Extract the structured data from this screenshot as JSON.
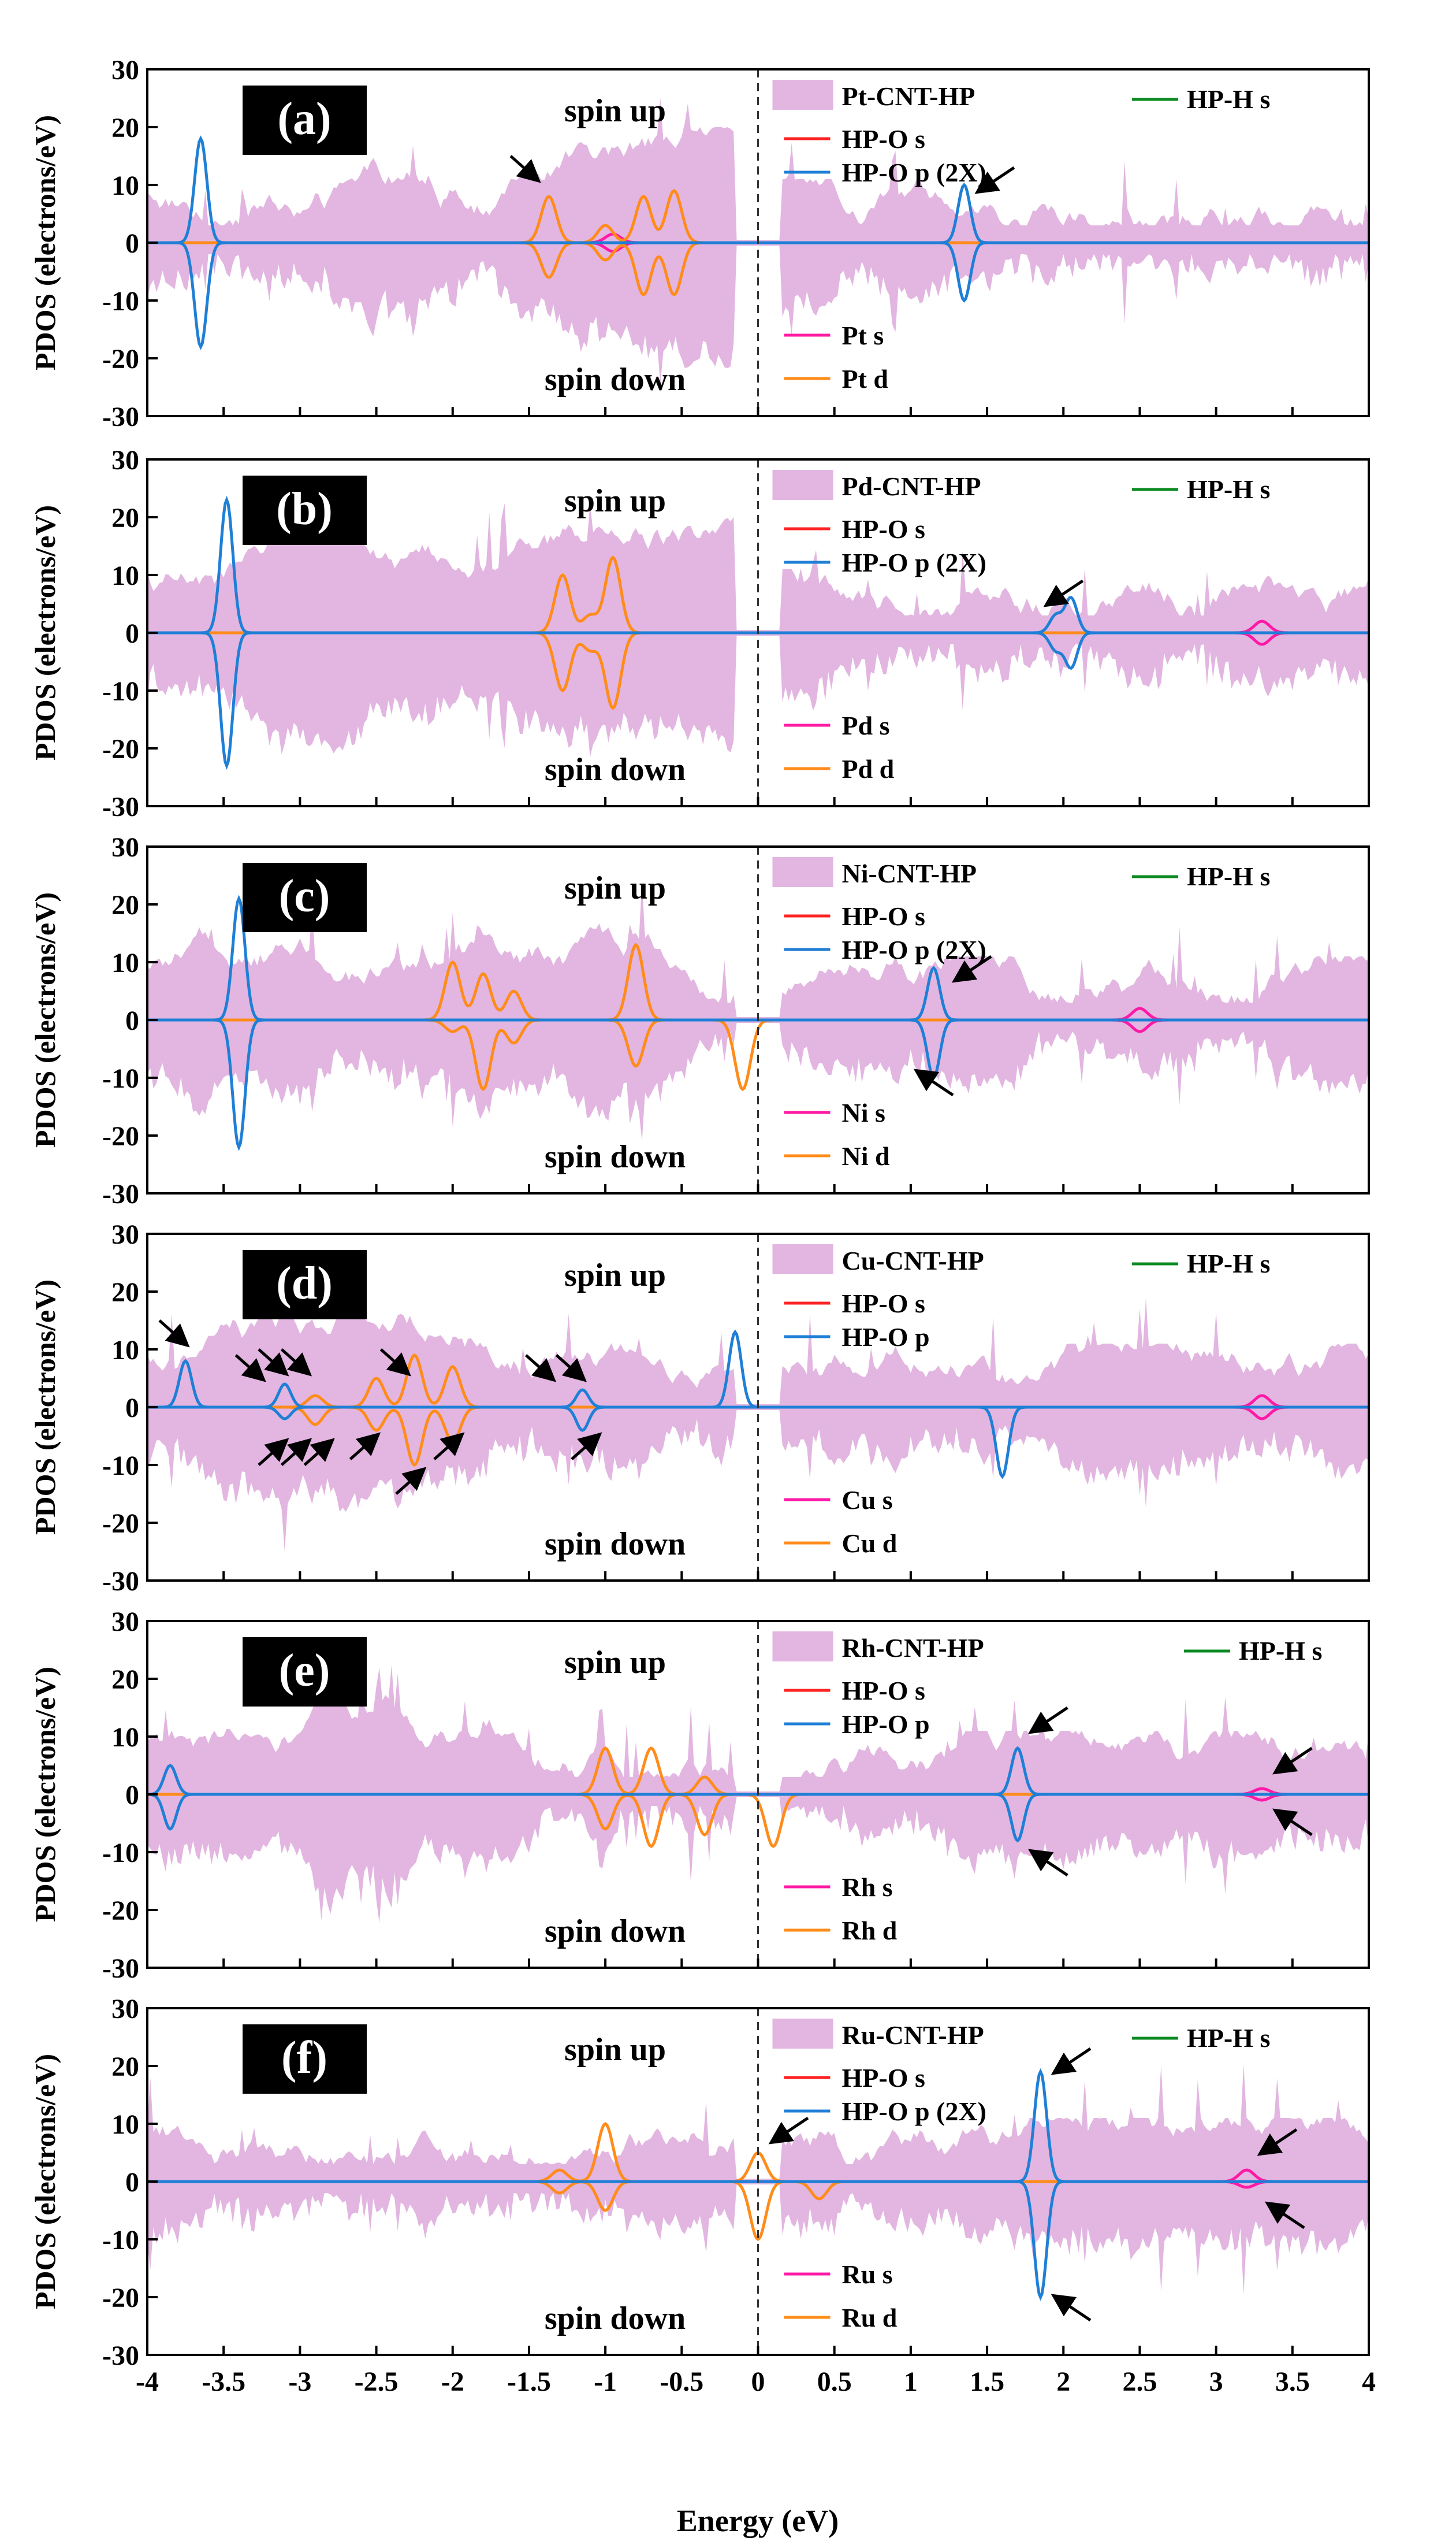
{
  "figure": {
    "xlabel": "Energy (eV)",
    "ylabel": "PDOS (electrons/eV)",
    "x_ticks": [
      "-4",
      "-3.5",
      "-3",
      "-2.5",
      "-2",
      "-1.5",
      "-1",
      "-0.5",
      "0",
      "0.5",
      "1",
      "1.5",
      "2",
      "2.5",
      "3",
      "3.5",
      "4"
    ],
    "y_ticks": [
      "30",
      "20",
      "10",
      "0",
      "-10",
      "-20",
      "-30"
    ]
  },
  "colors": {
    "total": "#e2b6e1",
    "o_s": "#ff2222",
    "o_p": "#1f7fd6",
    "h_s": "#0b8a22",
    "m_s": "#ff1aa6",
    "m_d": "#ff8c1a",
    "arrow": "#000000",
    "fermi": "#333333"
  },
  "chart_data": [
    {
      "type": "area",
      "panel_label": "(a)",
      "spin_up_label": "spin up",
      "spin_down_label": "spin down",
      "xlim": [
        -4,
        4
      ],
      "ylim": [
        -30,
        30
      ],
      "legend": {
        "total": "Pt-CNT-HP",
        "h_s": "HP-H s",
        "o_s": "HP-O s",
        "o_p": "HP-O p (2X)",
        "m_s": "Pt  s",
        "m_d": "Pt  d"
      },
      "peaks": {
        "o_p": [
          {
            "x": -3.65,
            "up": 18,
            "down": -18
          },
          {
            "x": 1.35,
            "up": 10,
            "down": -10
          }
        ],
        "m_d": [
          {
            "x": -1.37,
            "up": 8,
            "down": -6
          },
          {
            "x": -1.0,
            "up": 3,
            "down": -3
          },
          {
            "x": -0.75,
            "up": 8,
            "down": -9
          },
          {
            "x": -0.55,
            "up": 9,
            "down": -9
          }
        ],
        "m_s": [
          {
            "x": -0.95,
            "up": 1.5,
            "down": -1.5
          }
        ]
      },
      "arrows": [
        {
          "x": -1.45,
          "y": 11
        },
        {
          "x": 1.45,
          "y": 9
        }
      ]
    },
    {
      "type": "area",
      "panel_label": "(b)",
      "spin_up_label": "spin up",
      "spin_down_label": "spin down",
      "xlim": [
        -4,
        4
      ],
      "ylim": [
        -30,
        30
      ],
      "legend": {
        "total": "Pd-CNT-HP",
        "h_s": "HP-H s",
        "o_s": "HP-O s",
        "o_p": "HP-O p (2X)",
        "m_s": "Pd  s",
        "m_d": "Pd  d"
      },
      "peaks": {
        "o_p": [
          {
            "x": -3.48,
            "up": 23,
            "down": -23
          },
          {
            "x": 1.95,
            "up": 3,
            "down": -3
          },
          {
            "x": 2.05,
            "up": 6,
            "down": -6
          }
        ],
        "m_d": [
          {
            "x": -1.28,
            "up": 10,
            "down": -10
          },
          {
            "x": -0.95,
            "up": 13,
            "down": -13
          },
          {
            "x": -1.1,
            "up": 3,
            "down": -3
          }
        ],
        "m_s": [
          {
            "x": 3.3,
            "up": 2,
            "down": -2
          }
        ]
      },
      "arrows": [
        {
          "x": 1.9,
          "y": 5
        }
      ]
    },
    {
      "type": "area",
      "panel_label": "(c)",
      "spin_up_label": "spin up",
      "spin_down_label": "spin down",
      "xlim": [
        -4,
        4
      ],
      "ylim": [
        -30,
        30
      ],
      "legend": {
        "total": "Ni-CNT-HP",
        "h_s": "HP-H s",
        "o_s": "HP-O s",
        "o_p": "HP-O p (2X)",
        "m_s": "Ni  s",
        "m_d": "Ni  d"
      },
      "peaks": {
        "o_p": [
          {
            "x": -3.4,
            "up": 21,
            "down": -22
          },
          {
            "x": 1.15,
            "up": 9,
            "down": -10
          }
        ],
        "m_d": [
          {
            "x": -2.0,
            "up": 10,
            "down": -2
          },
          {
            "x": -1.8,
            "up": 8,
            "down": -12
          },
          {
            "x": -1.6,
            "up": 5,
            "down": -4
          },
          {
            "x": -0.8,
            "up": 13,
            "down": -8
          },
          {
            "x": -0.1,
            "up": 0,
            "down": -12
          }
        ],
        "m_s": [
          {
            "x": 2.5,
            "up": 2,
            "down": -2
          }
        ]
      },
      "arrows": [
        {
          "x": 1.3,
          "y": 7
        },
        {
          "x": 1.05,
          "y": -9
        }
      ]
    },
    {
      "type": "area",
      "panel_label": "(d)",
      "spin_up_label": "spin up",
      "spin_down_label": "spin down",
      "xlim": [
        -4,
        4
      ],
      "ylim": [
        -30,
        30
      ],
      "legend": {
        "total": "Cu-CNT-HP",
        "h_s": "HP-H s",
        "o_s": "HP-O s",
        "o_p": "HP-O p",
        "m_s": "Cu  s",
        "m_d": "Cu  d"
      },
      "peaks": {
        "o_p": [
          {
            "x": -3.75,
            "up": 8,
            "down": 0
          },
          {
            "x": -3.1,
            "up": 4,
            "down": -2
          },
          {
            "x": -1.15,
            "up": 3,
            "down": -4
          },
          {
            "x": -0.15,
            "up": 13,
            "down": 0
          },
          {
            "x": 1.6,
            "up": 0,
            "down": -12
          }
        ],
        "m_d": [
          {
            "x": -2.5,
            "up": 5,
            "down": -4
          },
          {
            "x": -2.25,
            "up": 9,
            "down": -10
          },
          {
            "x": -2.0,
            "up": 7,
            "down": -6
          },
          {
            "x": -2.9,
            "up": 2,
            "down": -3
          }
        ],
        "m_s": [
          {
            "x": 3.3,
            "up": 2,
            "down": -2
          }
        ]
      },
      "arrows": [
        {
          "x": -3.75,
          "y": 11
        },
        {
          "x": -3.25,
          "y": 5
        },
        {
          "x": -3.1,
          "y": 6
        },
        {
          "x": -2.95,
          "y": 6
        },
        {
          "x": -3.1,
          "y": -6
        },
        {
          "x": -2.95,
          "y": -6
        },
        {
          "x": -2.8,
          "y": -6
        },
        {
          "x": -2.5,
          "y": -5
        },
        {
          "x": -2.3,
          "y": 6
        },
        {
          "x": -2.2,
          "y": -11
        },
        {
          "x": -1.95,
          "y": -5
        },
        {
          "x": -1.35,
          "y": 5
        },
        {
          "x": -1.15,
          "y": 5
        },
        {
          "x": -1.05,
          "y": -5
        }
      ]
    },
    {
      "type": "area",
      "panel_label": "(e)",
      "spin_up_label": "spin up",
      "spin_down_label": "spin down",
      "xlim": [
        -4,
        4
      ],
      "ylim": [
        -30,
        30
      ],
      "legend": {
        "total": "Rh-CNT-HP",
        "h_s": "HP-H s",
        "o_s": "HP-O s",
        "o_p": "HP-O p",
        "m_s": "Rh  s",
        "m_d": "Rh  d"
      },
      "peaks": {
        "o_p": [
          {
            "x": -3.85,
            "up": 5,
            "down": -6
          },
          {
            "x": 1.7,
            "up": 8,
            "down": -8
          }
        ],
        "m_d": [
          {
            "x": -1.0,
            "up": 8,
            "down": -6
          },
          {
            "x": -0.7,
            "up": 8,
            "down": -9
          },
          {
            "x": -0.35,
            "up": 3,
            "down": -7
          },
          {
            "x": 0.1,
            "up": 0,
            "down": -9
          }
        ],
        "m_s": [
          {
            "x": 3.3,
            "up": 1,
            "down": -1
          }
        ]
      },
      "arrows": [
        {
          "x": 1.8,
          "y": 11
        },
        {
          "x": 1.8,
          "y": -10
        },
        {
          "x": 3.4,
          "y": 4
        },
        {
          "x": 3.4,
          "y": -3
        }
      ]
    },
    {
      "type": "area",
      "panel_label": "(f)",
      "spin_up_label": "spin up",
      "spin_down_label": "spin down",
      "xlim": [
        -4,
        4
      ],
      "ylim": [
        -30,
        30
      ],
      "legend": {
        "total": "Ru-CNT-HP",
        "h_s": "HP-H s",
        "o_s": "HP-O s",
        "o_p": "HP-O p (2X)",
        "m_s": "Ru  s",
        "m_d": "Ru  d"
      },
      "peaks": {
        "o_p": [
          {
            "x": 1.85,
            "up": 19,
            "down": -20
          }
        ],
        "m_d": [
          {
            "x": -1.0,
            "up": 10,
            "down": -5
          },
          {
            "x": -1.3,
            "up": 2,
            "down": -2
          },
          {
            "x": 0.0,
            "up": 5,
            "down": -10
          },
          {
            "x": 0.4,
            "up": 0,
            "down": -3
          }
        ],
        "m_s": [
          {
            "x": 3.2,
            "up": 2,
            "down": -1
          }
        ]
      },
      "arrows": [
        {
          "x": 0.1,
          "y": 7
        },
        {
          "x": 1.95,
          "y": 19
        },
        {
          "x": 1.95,
          "y": -20
        },
        {
          "x": 3.3,
          "y": 5
        },
        {
          "x": 3.35,
          "y": -4
        }
      ]
    }
  ]
}
